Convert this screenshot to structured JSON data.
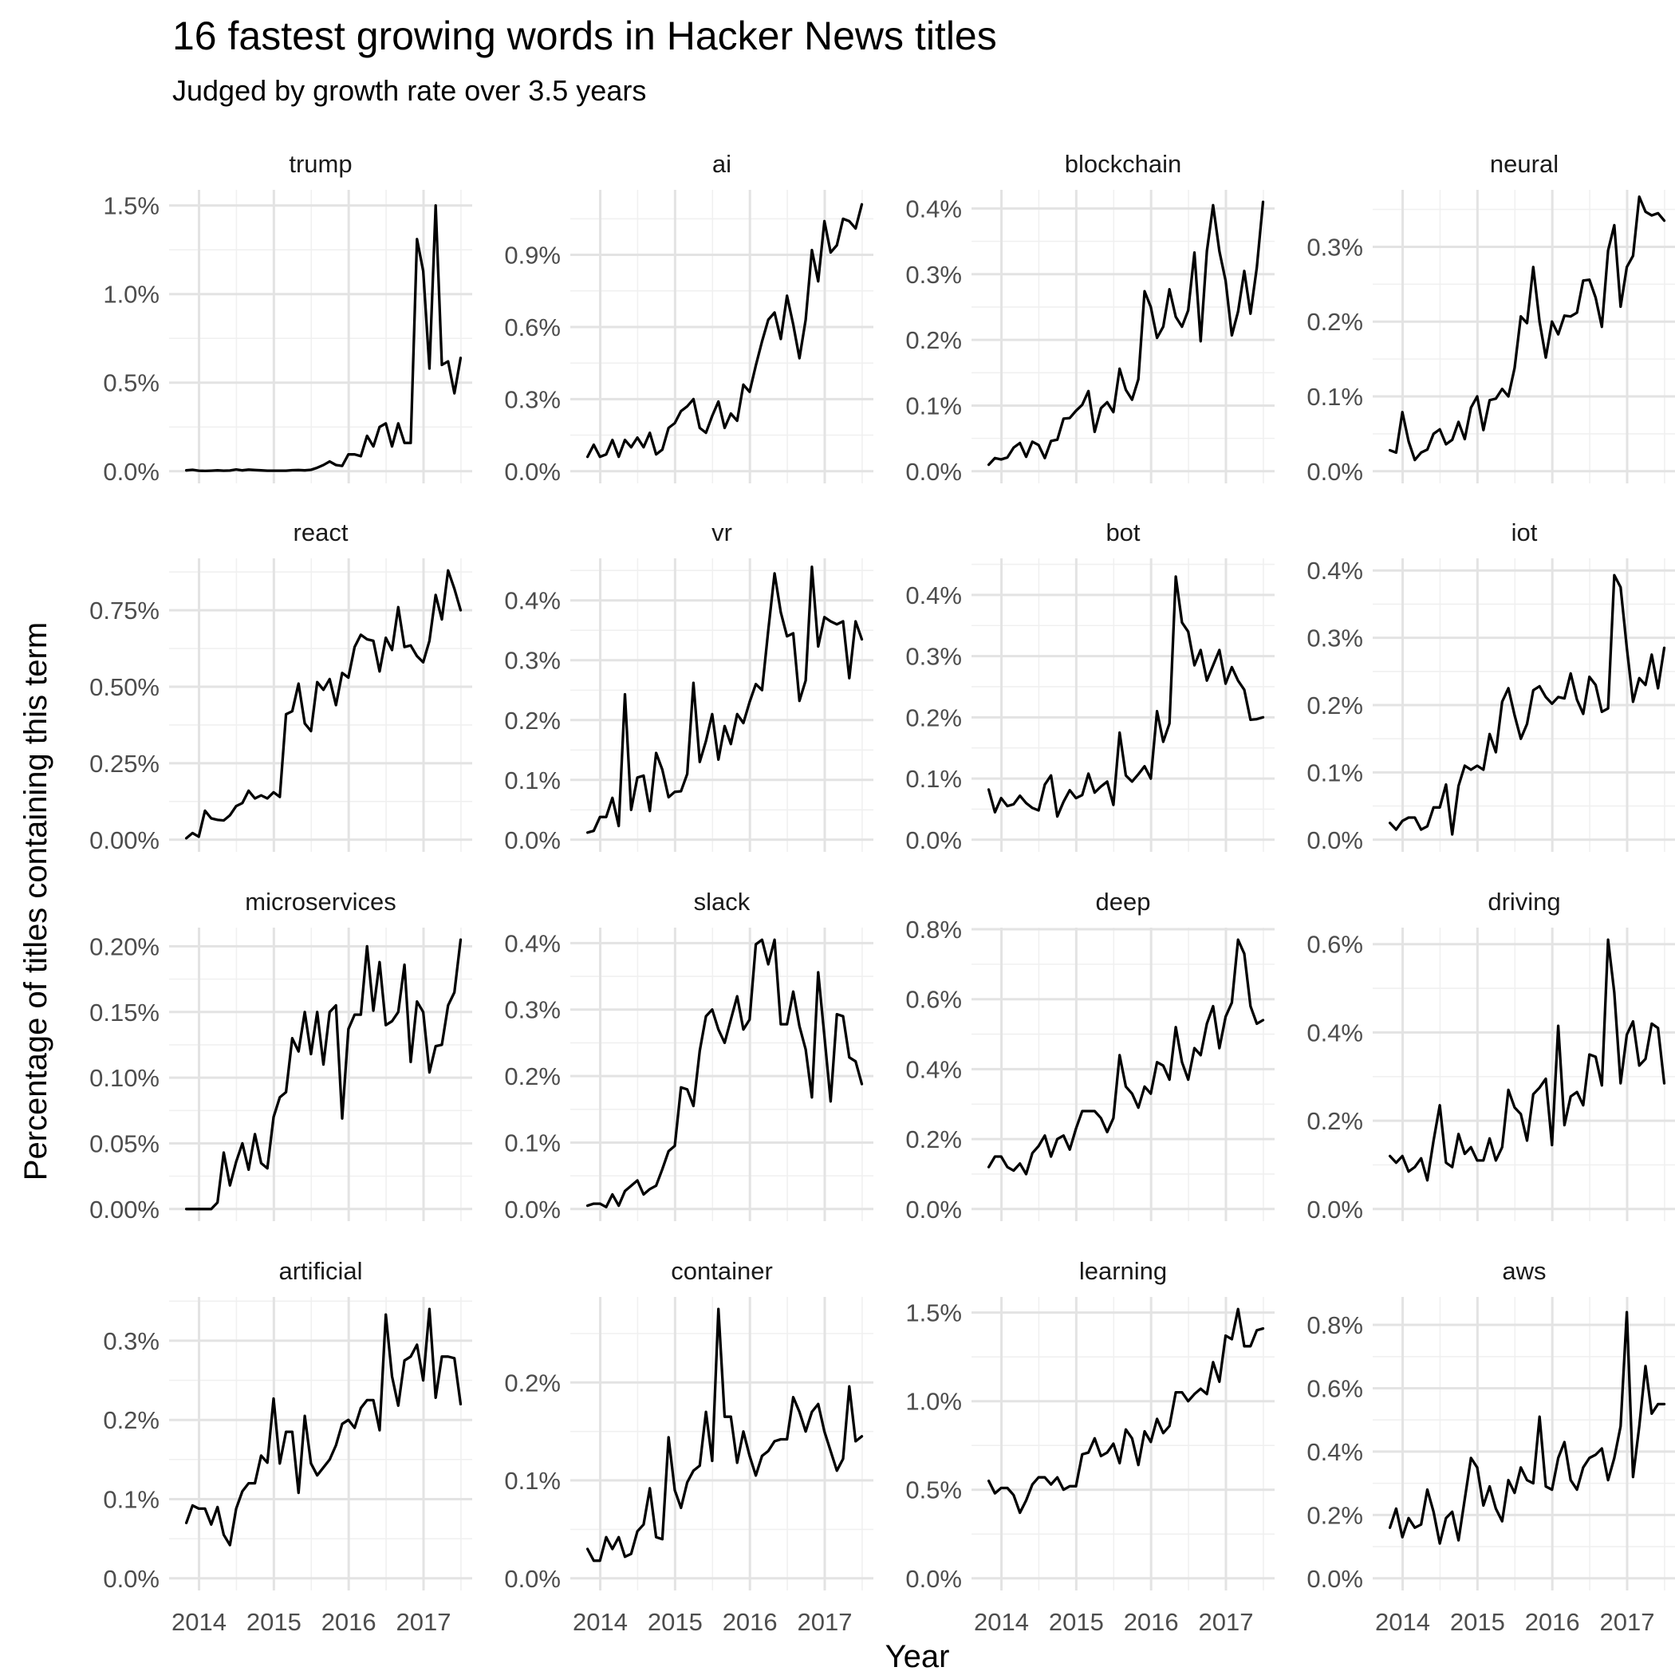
{
  "title": "16 fastest growing words in Hacker News titles",
  "subtitle": "Judged by growth rate over 3.5 years",
  "chart_data": {
    "type": "line",
    "layout": "facet-grid-4x4",
    "title": "16 fastest growing words in Hacker News titles",
    "subtitle": "Judged by growth rate over 3.5 years",
    "xlabel": "Year",
    "ylabel": "Percentage of titles containing this term",
    "xlim": [
      2013.6,
      2017.65
    ],
    "x_ticks": [
      2014,
      2015,
      2016,
      2017
    ],
    "x_start": 2013.83,
    "x_step": 0.0833,
    "grid": true,
    "facets": [
      {
        "name": "trump",
        "ylim": [
          0,
          1.52
        ],
        "yticks": [
          0,
          0.5,
          1.0,
          1.5
        ],
        "ytick_labels": [
          "0.0%",
          "0.5%",
          "1.0%",
          "1.5%"
        ],
        "values": [
          0.005,
          0.008,
          0.003,
          0.002,
          0.003,
          0.005,
          0.003,
          0.004,
          0.01,
          0.005,
          0.009,
          0.007,
          0.005,
          0.003,
          0.003,
          0.003,
          0.003,
          0.006,
          0.007,
          0.005,
          0.008,
          0.02,
          0.035,
          0.055,
          0.035,
          0.03,
          0.095,
          0.095,
          0.085,
          0.2,
          0.14,
          0.25,
          0.27,
          0.14,
          0.27,
          0.16,
          0.16,
          1.31,
          1.13,
          0.58,
          1.5,
          0.6,
          0.62,
          0.44,
          0.64
        ]
      },
      {
        "name": "ai",
        "ylim": [
          0,
          1.12
        ],
        "yticks": [
          0,
          0.3,
          0.6,
          0.9
        ],
        "ytick_labels": [
          "0.0%",
          "0.3%",
          "0.6%",
          "0.9%"
        ],
        "values": [
          0.06,
          0.11,
          0.06,
          0.07,
          0.13,
          0.06,
          0.13,
          0.1,
          0.14,
          0.1,
          0.16,
          0.07,
          0.09,
          0.18,
          0.2,
          0.25,
          0.27,
          0.3,
          0.18,
          0.16,
          0.23,
          0.29,
          0.18,
          0.24,
          0.21,
          0.36,
          0.33,
          0.44,
          0.54,
          0.63,
          0.66,
          0.55,
          0.73,
          0.61,
          0.47,
          0.63,
          0.92,
          0.79,
          1.04,
          0.91,
          0.94,
          1.05,
          1.04,
          1.01,
          1.11
        ]
      },
      {
        "name": "blockchain",
        "ylim": [
          0,
          0.41
        ],
        "yticks": [
          0,
          0.1,
          0.2,
          0.3,
          0.4
        ],
        "ytick_labels": [
          "0.0%",
          "0.1%",
          "0.2%",
          "0.3%",
          "0.4%"
        ],
        "values": [
          0.01,
          0.02,
          0.018,
          0.021,
          0.036,
          0.043,
          0.022,
          0.045,
          0.04,
          0.02,
          0.046,
          0.048,
          0.08,
          0.081,
          0.092,
          0.101,
          0.122,
          0.06,
          0.096,
          0.105,
          0.09,
          0.156,
          0.124,
          0.109,
          0.14,
          0.274,
          0.25,
          0.203,
          0.22,
          0.277,
          0.235,
          0.22,
          0.245,
          0.333,
          0.198,
          0.335,
          0.405,
          0.335,
          0.29,
          0.207,
          0.243,
          0.305,
          0.24,
          0.31,
          0.41
        ]
      },
      {
        "name": "neural",
        "ylim": [
          0,
          0.36
        ],
        "yticks": [
          0,
          0.1,
          0.2,
          0.3
        ],
        "ytick_labels": [
          "0.0%",
          "0.1%",
          "0.2%",
          "0.3%"
        ],
        "values": [
          0.028,
          0.025,
          0.079,
          0.04,
          0.015,
          0.025,
          0.029,
          0.05,
          0.056,
          0.036,
          0.042,
          0.066,
          0.043,
          0.085,
          0.1,
          0.055,
          0.095,
          0.097,
          0.11,
          0.1,
          0.138,
          0.207,
          0.198,
          0.273,
          0.2,
          0.152,
          0.2,
          0.183,
          0.208,
          0.207,
          0.212,
          0.255,
          0.256,
          0.232,
          0.193,
          0.295,
          0.329,
          0.22,
          0.273,
          0.288,
          0.367,
          0.347,
          0.342,
          0.345,
          0.335
        ]
      },
      {
        "name": "react",
        "ylim": [
          0,
          0.88
        ],
        "yticks": [
          0,
          0.25,
          0.5,
          0.75
        ],
        "ytick_labels": [
          "0.00%",
          "0.25%",
          "0.50%",
          "0.75%"
        ],
        "values": [
          0.005,
          0.022,
          0.01,
          0.095,
          0.07,
          0.065,
          0.063,
          0.08,
          0.11,
          0.12,
          0.16,
          0.135,
          0.145,
          0.135,
          0.155,
          0.14,
          0.41,
          0.42,
          0.51,
          0.38,
          0.355,
          0.515,
          0.49,
          0.525,
          0.44,
          0.545,
          0.53,
          0.63,
          0.67,
          0.655,
          0.65,
          0.55,
          0.66,
          0.62,
          0.76,
          0.63,
          0.635,
          0.6,
          0.58,
          0.65,
          0.8,
          0.72,
          0.88,
          0.82,
          0.75
        ]
      },
      {
        "name": "vr",
        "ylim": [
          0,
          0.45
        ],
        "yticks": [
          0,
          0.1,
          0.2,
          0.3,
          0.4
        ],
        "ytick_labels": [
          "0.0%",
          "0.1%",
          "0.2%",
          "0.3%",
          "0.4%"
        ],
        "values": [
          0.012,
          0.015,
          0.038,
          0.038,
          0.07,
          0.023,
          0.243,
          0.05,
          0.104,
          0.107,
          0.048,
          0.145,
          0.117,
          0.071,
          0.08,
          0.081,
          0.11,
          0.262,
          0.13,
          0.165,
          0.21,
          0.134,
          0.19,
          0.16,
          0.21,
          0.195,
          0.23,
          0.26,
          0.25,
          0.35,
          0.445,
          0.38,
          0.34,
          0.345,
          0.232,
          0.266,
          0.456,
          0.323,
          0.372,
          0.365,
          0.36,
          0.365,
          0.27,
          0.365,
          0.335
        ]
      },
      {
        "name": "bot",
        "ylim": [
          0,
          0.44
        ],
        "yticks": [
          0,
          0.1,
          0.2,
          0.3,
          0.4
        ],
        "ytick_labels": [
          "0.0%",
          "0.1%",
          "0.2%",
          "0.3%",
          "0.4%"
        ],
        "values": [
          0.082,
          0.045,
          0.068,
          0.055,
          0.058,
          0.072,
          0.06,
          0.052,
          0.048,
          0.09,
          0.105,
          0.038,
          0.062,
          0.081,
          0.068,
          0.073,
          0.108,
          0.077,
          0.087,
          0.095,
          0.057,
          0.175,
          0.105,
          0.095,
          0.107,
          0.12,
          0.1,
          0.21,
          0.16,
          0.19,
          0.43,
          0.355,
          0.34,
          0.285,
          0.31,
          0.26,
          0.285,
          0.31,
          0.255,
          0.282,
          0.26,
          0.245,
          0.196,
          0.197,
          0.2
        ]
      },
      {
        "name": "iot",
        "ylim": [
          0,
          0.4
        ],
        "yticks": [
          0,
          0.1,
          0.2,
          0.3,
          0.4
        ],
        "ytick_labels": [
          "0.0%",
          "0.1%",
          "0.2%",
          "0.3%",
          "0.4%"
        ],
        "values": [
          0.025,
          0.015,
          0.028,
          0.033,
          0.033,
          0.015,
          0.02,
          0.048,
          0.048,
          0.082,
          0.008,
          0.08,
          0.11,
          0.104,
          0.11,
          0.104,
          0.157,
          0.13,
          0.205,
          0.225,
          0.185,
          0.15,
          0.172,
          0.222,
          0.228,
          0.212,
          0.202,
          0.212,
          0.21,
          0.247,
          0.208,
          0.187,
          0.242,
          0.23,
          0.19,
          0.195,
          0.393,
          0.375,
          0.285,
          0.205,
          0.24,
          0.23,
          0.275,
          0.225,
          0.285
        ]
      },
      {
        "name": "microservices",
        "ylim": [
          0,
          0.205
        ],
        "yticks": [
          0,
          0.05,
          0.1,
          0.15,
          0.2
        ],
        "ytick_labels": [
          "0.00%",
          "0.05%",
          "0.10%",
          "0.15%",
          "0.20%"
        ],
        "values": [
          0.0,
          0.0,
          0.0,
          0.0,
          0.0,
          0.005,
          0.043,
          0.018,
          0.036,
          0.05,
          0.03,
          0.057,
          0.035,
          0.031,
          0.07,
          0.085,
          0.089,
          0.13,
          0.12,
          0.15,
          0.118,
          0.15,
          0.11,
          0.15,
          0.155,
          0.069,
          0.137,
          0.148,
          0.148,
          0.2,
          0.151,
          0.188,
          0.14,
          0.143,
          0.15,
          0.186,
          0.112,
          0.158,
          0.15,
          0.104,
          0.124,
          0.125,
          0.155,
          0.165,
          0.205
        ]
      },
      {
        "name": "slack",
        "ylim": [
          0,
          0.405
        ],
        "yticks": [
          0,
          0.1,
          0.2,
          0.3,
          0.4
        ],
        "ytick_labels": [
          "0.0%",
          "0.1%",
          "0.2%",
          "0.3%",
          "0.4%"
        ],
        "values": [
          0.005,
          0.008,
          0.008,
          0.003,
          0.022,
          0.005,
          0.027,
          0.035,
          0.043,
          0.022,
          0.03,
          0.035,
          0.06,
          0.087,
          0.095,
          0.183,
          0.18,
          0.155,
          0.238,
          0.29,
          0.3,
          0.27,
          0.25,
          0.285,
          0.32,
          0.27,
          0.285,
          0.398,
          0.405,
          0.368,
          0.405,
          0.278,
          0.278,
          0.327,
          0.275,
          0.24,
          0.168,
          0.356,
          0.26,
          0.162,
          0.293,
          0.29,
          0.228,
          0.222,
          0.188
        ]
      },
      {
        "name": "deep",
        "ylim": [
          0,
          0.77
        ],
        "yticks": [
          0,
          0.2,
          0.4,
          0.6,
          0.8
        ],
        "ytick_labels": [
          "0.0%",
          "0.2%",
          "0.4%",
          "0.6%",
          "0.8%"
        ],
        "values": [
          0.12,
          0.15,
          0.15,
          0.12,
          0.11,
          0.13,
          0.1,
          0.16,
          0.18,
          0.21,
          0.15,
          0.2,
          0.21,
          0.17,
          0.23,
          0.28,
          0.28,
          0.28,
          0.26,
          0.22,
          0.26,
          0.44,
          0.35,
          0.33,
          0.29,
          0.35,
          0.33,
          0.42,
          0.41,
          0.37,
          0.52,
          0.42,
          0.37,
          0.46,
          0.44,
          0.53,
          0.58,
          0.46,
          0.55,
          0.59,
          0.77,
          0.73,
          0.58,
          0.53,
          0.54
        ]
      },
      {
        "name": "driving",
        "ylim": [
          0,
          0.61
        ],
        "yticks": [
          0,
          0.2,
          0.4,
          0.6
        ],
        "ytick_labels": [
          "0.0%",
          "0.2%",
          "0.4%",
          "0.6%"
        ],
        "values": [
          0.12,
          0.105,
          0.12,
          0.085,
          0.095,
          0.115,
          0.065,
          0.155,
          0.235,
          0.105,
          0.095,
          0.17,
          0.125,
          0.14,
          0.11,
          0.11,
          0.16,
          0.11,
          0.14,
          0.27,
          0.23,
          0.215,
          0.155,
          0.26,
          0.275,
          0.295,
          0.145,
          0.415,
          0.19,
          0.255,
          0.265,
          0.235,
          0.35,
          0.345,
          0.28,
          0.61,
          0.49,
          0.285,
          0.395,
          0.425,
          0.325,
          0.34,
          0.42,
          0.41,
          0.285
        ]
      },
      {
        "name": "artificial",
        "ylim": [
          0,
          0.34
        ],
        "yticks": [
          0,
          0.1,
          0.2,
          0.3
        ],
        "ytick_labels": [
          "0.0%",
          "0.1%",
          "0.2%",
          "0.3%"
        ],
        "values": [
          0.07,
          0.092,
          0.088,
          0.088,
          0.068,
          0.09,
          0.055,
          0.042,
          0.088,
          0.11,
          0.12,
          0.12,
          0.155,
          0.146,
          0.227,
          0.145,
          0.185,
          0.185,
          0.108,
          0.205,
          0.145,
          0.13,
          0.14,
          0.15,
          0.168,
          0.195,
          0.2,
          0.19,
          0.215,
          0.225,
          0.225,
          0.187,
          0.333,
          0.255,
          0.218,
          0.275,
          0.28,
          0.295,
          0.25,
          0.34,
          0.228,
          0.28,
          0.28,
          0.278,
          0.22
        ]
      },
      {
        "name": "container",
        "ylim": [
          0,
          0.275
        ],
        "yticks": [
          0,
          0.1,
          0.2
        ],
        "ytick_labels": [
          "0.0%",
          "0.1%",
          "0.2%"
        ],
        "values": [
          0.03,
          0.018,
          0.018,
          0.042,
          0.03,
          0.042,
          0.022,
          0.025,
          0.048,
          0.055,
          0.092,
          0.042,
          0.04,
          0.144,
          0.09,
          0.072,
          0.098,
          0.11,
          0.115,
          0.17,
          0.12,
          0.275,
          0.165,
          0.165,
          0.118,
          0.15,
          0.125,
          0.105,
          0.125,
          0.13,
          0.14,
          0.142,
          0.142,
          0.185,
          0.17,
          0.15,
          0.17,
          0.178,
          0.15,
          0.13,
          0.11,
          0.122,
          0.196,
          0.14,
          0.145
        ]
      },
      {
        "name": "learning",
        "ylim": [
          0,
          1.52
        ],
        "yticks": [
          0,
          0.5,
          1.0,
          1.5
        ],
        "ytick_labels": [
          "0.0%",
          "0.5%",
          "1.0%",
          "1.5%"
        ],
        "values": [
          0.55,
          0.48,
          0.51,
          0.51,
          0.47,
          0.37,
          0.44,
          0.53,
          0.57,
          0.57,
          0.53,
          0.57,
          0.5,
          0.52,
          0.52,
          0.7,
          0.71,
          0.79,
          0.69,
          0.71,
          0.76,
          0.65,
          0.84,
          0.79,
          0.64,
          0.83,
          0.77,
          0.9,
          0.82,
          0.86,
          1.05,
          1.05,
          1.0,
          1.04,
          1.07,
          1.04,
          1.22,
          1.11,
          1.37,
          1.35,
          1.52,
          1.31,
          1.31,
          1.4,
          1.41
        ]
      },
      {
        "name": "aws",
        "ylim": [
          0,
          0.85
        ],
        "yticks": [
          0,
          0.2,
          0.4,
          0.6,
          0.8
        ],
        "ytick_labels": [
          "0.0%",
          "0.2%",
          "0.4%",
          "0.6%",
          "0.8%"
        ],
        "values": [
          0.16,
          0.22,
          0.13,
          0.19,
          0.16,
          0.17,
          0.28,
          0.21,
          0.11,
          0.19,
          0.21,
          0.12,
          0.25,
          0.38,
          0.35,
          0.23,
          0.29,
          0.22,
          0.18,
          0.31,
          0.27,
          0.35,
          0.31,
          0.3,
          0.51,
          0.29,
          0.28,
          0.38,
          0.43,
          0.31,
          0.28,
          0.35,
          0.38,
          0.39,
          0.41,
          0.31,
          0.38,
          0.48,
          0.84,
          0.32,
          0.48,
          0.67,
          0.52,
          0.55,
          0.55
        ]
      }
    ]
  }
}
